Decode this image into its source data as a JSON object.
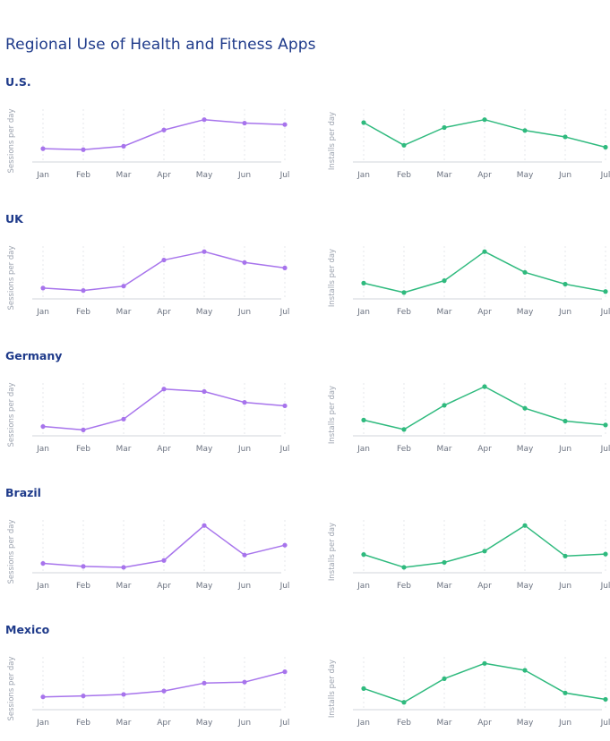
{
  "title": "Regional Use of Health and Fitness Apps",
  "colors": {
    "title": "#1e3a8a",
    "sessions": "#a774ec",
    "installs": "#2fba7e"
  },
  "chart_data": [
    {
      "region": "U.S.",
      "type": "line",
      "ylabel": "Sessions per day",
      "categories": [
        "Jan",
        "Feb",
        "Mar",
        "Apr",
        "May",
        "Jun",
        "Jul"
      ],
      "values": [
        27,
        25,
        32,
        65,
        86,
        79,
        76
      ],
      "ylim": [
        0,
        100
      ],
      "grid": true,
      "color": "#a774ec"
    },
    {
      "region": "U.S.",
      "type": "line",
      "ylabel": "Installs per day",
      "categories": [
        "Jan",
        "Feb",
        "Mar",
        "Apr",
        "May",
        "Jun",
        "Jul"
      ],
      "values": [
        80,
        34,
        70,
        86,
        64,
        51,
        30
      ],
      "ylim": [
        0,
        100
      ],
      "grid": true,
      "color": "#2fba7e"
    },
    {
      "region": "UK",
      "type": "line",
      "ylabel": "Sessions per day",
      "categories": [
        "Jan",
        "Feb",
        "Mar",
        "Apr",
        "May",
        "Jun",
        "Jul"
      ],
      "values": [
        22,
        17,
        26,
        79,
        96,
        74,
        63
      ],
      "ylim": [
        0,
        100
      ],
      "grid": true,
      "color": "#a774ec"
    },
    {
      "region": "UK",
      "type": "line",
      "ylabel": "Installs per day",
      "categories": [
        "Jan",
        "Feb",
        "Mar",
        "Apr",
        "May",
        "Jun",
        "Jul"
      ],
      "values": [
        32,
        13,
        37,
        96,
        54,
        30,
        15
      ],
      "ylim": [
        0,
        100
      ],
      "grid": true,
      "color": "#2fba7e"
    },
    {
      "region": "Germany",
      "type": "line",
      "ylabel": "Sessions per day",
      "categories": [
        "Jan",
        "Feb",
        "Mar",
        "Apr",
        "May",
        "Jun",
        "Jul"
      ],
      "values": [
        19,
        12,
        34,
        95,
        90,
        68,
        61
      ],
      "ylim": [
        0,
        100
      ],
      "grid": true,
      "color": "#a774ec"
    },
    {
      "region": "Germany",
      "type": "line",
      "ylabel": "Installs per day",
      "categories": [
        "Jan",
        "Feb",
        "Mar",
        "Apr",
        "May",
        "Jun",
        "Jul"
      ],
      "values": [
        32,
        13,
        62,
        100,
        56,
        30,
        22
      ],
      "ylim": [
        0,
        100
      ],
      "grid": true,
      "color": "#2fba7e"
    },
    {
      "region": "Brazil",
      "type": "line",
      "ylabel": "Sessions per day",
      "categories": [
        "Jan",
        "Feb",
        "Mar",
        "Apr",
        "May",
        "Jun",
        "Jul"
      ],
      "values": [
        19,
        13,
        11,
        25,
        96,
        36,
        56
      ],
      "ylim": [
        0,
        100
      ],
      "grid": true,
      "color": "#a774ec"
    },
    {
      "region": "Brazil",
      "type": "line",
      "ylabel": "Installs per day",
      "categories": [
        "Jan",
        "Feb",
        "Mar",
        "Apr",
        "May",
        "Jun",
        "Jul"
      ],
      "values": [
        37,
        11,
        21,
        44,
        96,
        34,
        38
      ],
      "ylim": [
        0,
        100
      ],
      "grid": true,
      "color": "#2fba7e"
    },
    {
      "region": "Mexico",
      "type": "line",
      "ylabel": "Sessions per day",
      "categories": [
        "Jan",
        "Feb",
        "Mar",
        "Apr",
        "May",
        "Jun",
        "Jul"
      ],
      "values": [
        26,
        28,
        31,
        38,
        54,
        56,
        77
      ],
      "ylim": [
        0,
        100
      ],
      "grid": true,
      "color": "#a774ec"
    },
    {
      "region": "Mexico",
      "type": "line",
      "ylabel": "Installs per day",
      "categories": [
        "Jan",
        "Feb",
        "Mar",
        "Apr",
        "May",
        "Jun",
        "Jul"
      ],
      "values": [
        43,
        15,
        63,
        94,
        80,
        34,
        21
      ],
      "ylim": [
        0,
        100
      ],
      "grid": true,
      "color": "#2fba7e"
    }
  ]
}
